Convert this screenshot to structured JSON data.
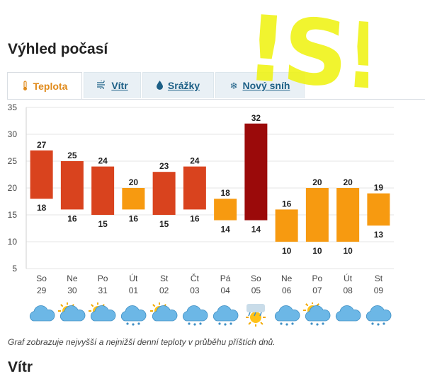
{
  "header": {
    "title": "Výhled počasí"
  },
  "tabs": [
    {
      "label": "Teplota",
      "icon": "thermometer-icon",
      "active": true
    },
    {
      "label": "Vítr",
      "icon": "wind-icon",
      "active": false
    },
    {
      "label": "Srážky",
      "icon": "raindrop-icon",
      "active": false
    },
    {
      "label": "Nový sníh",
      "icon": "snowflake-icon",
      "active": false
    }
  ],
  "overlay_text": "!S!",
  "chart_data": {
    "type": "bar",
    "title": "",
    "xlabel": "",
    "ylabel": "",
    "ylim": [
      5,
      35
    ],
    "yticks": [
      5,
      10,
      15,
      20,
      25,
      30,
      35
    ],
    "days": [
      {
        "weekday": "So",
        "date": "29",
        "high": 27,
        "low": 18,
        "color": "#d9431e",
        "weather": "cloudy"
      },
      {
        "weekday": "Ne",
        "date": "30",
        "high": 25,
        "low": 16,
        "color": "#d9431e",
        "weather": "partly-cloudy"
      },
      {
        "weekday": "Po",
        "date": "31",
        "high": 24,
        "low": 15,
        "color": "#d9431e",
        "weather": "partly-cloudy"
      },
      {
        "weekday": "Út",
        "date": "01",
        "high": 20,
        "low": 16,
        "color": "#f79a10",
        "weather": "rain"
      },
      {
        "weekday": "St",
        "date": "02",
        "high": 23,
        "low": 15,
        "color": "#d9431e",
        "weather": "partly-cloudy"
      },
      {
        "weekday": "Čt",
        "date": "03",
        "high": 24,
        "low": 16,
        "color": "#d9431e",
        "weather": "rain"
      },
      {
        "weekday": "Pá",
        "date": "04",
        "high": 18,
        "low": 14,
        "color": "#f79a10",
        "weather": "rain"
      },
      {
        "weekday": "So",
        "date": "05",
        "high": 32,
        "low": 14,
        "color": "#9b0a0a",
        "weather": "sun-storm"
      },
      {
        "weekday": "Ne",
        "date": "06",
        "high": 16,
        "low": 10,
        "color": "#f79a10",
        "weather": "rain"
      },
      {
        "weekday": "Po",
        "date": "07",
        "high": 20,
        "low": 10,
        "color": "#f79a10",
        "weather": "sun-rain"
      },
      {
        "weekday": "Út",
        "date": "08",
        "high": 20,
        "low": 10,
        "color": "#f79a10",
        "weather": "cloudy"
      },
      {
        "weekday": "St",
        "date": "09",
        "high": 19,
        "low": 13,
        "color": "#f79a10",
        "weather": "rain"
      }
    ]
  },
  "caption": "Graf zobrazuje nejvyšší a nejnižší denní teploty v průběhu příštích dnů.",
  "next_section": {
    "title": "Vítr"
  }
}
